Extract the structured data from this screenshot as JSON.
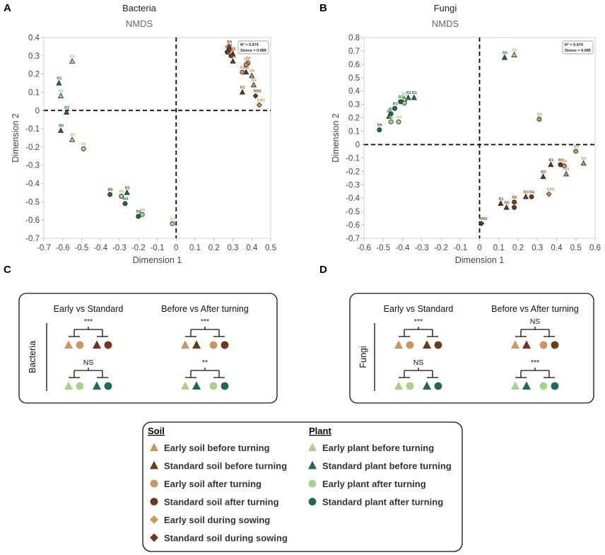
{
  "colors": {
    "early_soil": "#c8965f",
    "standard_soil": "#6b3a1e",
    "early_plant": "#a8d28a",
    "standard_plant": "#1f6b4e",
    "label_brown": "#8a4a20",
    "label_tan": "#c8965f",
    "label_green": "#9cc97d",
    "label_dkgreen": "#1f6b4e"
  },
  "chart_data": [
    {
      "panel": "A",
      "type": "scatter",
      "title": "Bacteria",
      "subtitle": "NMDS",
      "xlabel": "Dimension 1",
      "ylabel": "Dimension 2",
      "xlim": [
        -0.7,
        0.5
      ],
      "ylim": [
        -0.7,
        0.4
      ],
      "xticks": [
        "-0.7",
        "-0.6",
        "-0.5",
        "-0.4",
        "-0.3",
        "-0.2",
        "-0.1",
        "0",
        "0.1",
        "0.2",
        "0.3",
        "0.4",
        "0.5"
      ],
      "yticks": [
        "-0.7",
        "-0.6",
        "-0.5",
        "-0.4",
        "-0.3",
        "-0.2",
        "-0.1",
        "0",
        "0.1",
        "0.2",
        "0.3",
        "0.4"
      ],
      "stats": [
        "R² = 0.974",
        "Stress = 0.089"
      ],
      "points": [
        {
          "x": -0.55,
          "y": 0.27,
          "g": "epb",
          "label": "R1"
        },
        {
          "x": -0.62,
          "y": 0.15,
          "g": "spb",
          "label": "R1"
        },
        {
          "x": -0.61,
          "y": 0.08,
          "g": "epb",
          "label": "R2"
        },
        {
          "x": -0.58,
          "y": -0.01,
          "g": "spb",
          "label": "R2"
        },
        {
          "x": -0.61,
          "y": -0.11,
          "g": "spb",
          "label": "R0"
        },
        {
          "x": -0.55,
          "y": -0.16,
          "g": "epb",
          "label": "R0"
        },
        {
          "x": -0.49,
          "y": -0.21,
          "g": "epa",
          "label": "R1"
        },
        {
          "x": -0.35,
          "y": -0.46,
          "g": "spa",
          "label": "R5"
        },
        {
          "x": -0.29,
          "y": -0.47,
          "g": "epa",
          "label": "R5"
        },
        {
          "x": -0.26,
          "y": -0.45,
          "g": "spb",
          "label": "R3"
        },
        {
          "x": -0.27,
          "y": -0.51,
          "g": "spa",
          "label": "R4"
        },
        {
          "x": -0.2,
          "y": -0.58,
          "g": "spa",
          "label": "R6"
        },
        {
          "x": -0.18,
          "y": -0.57,
          "g": "epa",
          "label": "R6"
        },
        {
          "x": -0.02,
          "y": -0.62,
          "g": "epa",
          "label": "R3"
        },
        {
          "x": 0.28,
          "y": 0.35,
          "g": "ssb",
          "label": "R6"
        },
        {
          "x": 0.28,
          "y": 0.33,
          "g": "ssa",
          "label": "R4"
        },
        {
          "x": 0.27,
          "y": 0.32,
          "g": "ssa",
          "label": "R3"
        },
        {
          "x": 0.3,
          "y": 0.31,
          "g": "ssb",
          "label": "R5"
        },
        {
          "x": 0.29,
          "y": 0.3,
          "g": "ssa",
          "label": "R2"
        },
        {
          "x": 0.3,
          "y": 0.27,
          "g": "ssb",
          "label": "R4"
        },
        {
          "x": 0.38,
          "y": 0.26,
          "g": "esa",
          "label": "R6"
        },
        {
          "x": 0.37,
          "y": 0.25,
          "g": "esa",
          "label": "R4"
        },
        {
          "x": 0.35,
          "y": 0.21,
          "g": "esa",
          "label": "R3"
        },
        {
          "x": 0.37,
          "y": 0.21,
          "g": "ssb",
          "label": "R1"
        },
        {
          "x": 0.4,
          "y": 0.19,
          "g": "esb",
          "label": "R5"
        },
        {
          "x": 0.41,
          "y": 0.14,
          "g": "esb",
          "label": "R2"
        },
        {
          "x": 0.35,
          "y": 0.1,
          "g": "ssb",
          "label": "R1"
        },
        {
          "x": 0.42,
          "y": 0.08,
          "g": "ssd",
          "label": "RM1"
        },
        {
          "x": 0.44,
          "y": 0.03,
          "g": "esd",
          "label": "EM1"
        }
      ]
    },
    {
      "panel": "B",
      "type": "scatter",
      "title": "Fungi",
      "subtitle": "NMDS",
      "xlabel": "Dimension 1",
      "ylabel": "Dimension 2",
      "xlim": [
        -0.6,
        0.6
      ],
      "ylim": [
        -0.7,
        0.8
      ],
      "xticks": [
        "-0.6",
        "-0.5",
        "-0.4",
        "-0.3",
        "-0.2",
        "-0.1",
        "0",
        "0.1",
        "0.2",
        "0.3",
        "0.4",
        "0.5",
        "0.6"
      ],
      "yticks": [
        "-0.7",
        "-0.6",
        "-0.5",
        "-0.4",
        "-0.3",
        "-0.2",
        "-0.1",
        "0",
        "0.1",
        "0.2",
        "0.3",
        "0.4",
        "0.5",
        "0.6",
        "0.7",
        "0.8"
      ],
      "stats": [
        "R² = 0.974",
        "Stress = 0.085"
      ],
      "points": [
        {
          "x": 0.13,
          "y": 0.65,
          "g": "spb",
          "label": "R5"
        },
        {
          "x": 0.18,
          "y": 0.67,
          "g": "epb",
          "label": "R6"
        },
        {
          "x": -0.37,
          "y": 0.35,
          "g": "spb",
          "label": "R3"
        },
        {
          "x": -0.34,
          "y": 0.35,
          "g": "spb",
          "label": "R1"
        },
        {
          "x": -0.39,
          "y": 0.34,
          "g": "epb",
          "label": "R2"
        },
        {
          "x": -0.41,
          "y": 0.32,
          "g": "spa",
          "label": "R2"
        },
        {
          "x": -0.44,
          "y": 0.27,
          "g": "spa",
          "label": "R3"
        },
        {
          "x": -0.39,
          "y": 0.31,
          "g": "epa",
          "label": "R5"
        },
        {
          "x": -0.46,
          "y": 0.23,
          "g": "spa",
          "label": "R4"
        },
        {
          "x": -0.47,
          "y": 0.21,
          "g": "spb",
          "label": "R5"
        },
        {
          "x": -0.42,
          "y": 0.17,
          "g": "epa",
          "label": "R4"
        },
        {
          "x": -0.46,
          "y": 0.17,
          "g": "epa",
          "label": "R6"
        },
        {
          "x": -0.52,
          "y": 0.11,
          "g": "spa",
          "label": "R6"
        },
        {
          "x": 0.31,
          "y": 0.19,
          "g": "esa",
          "label": "R3"
        },
        {
          "x": 0.5,
          "y": -0.05,
          "g": "esa",
          "label": "R4"
        },
        {
          "x": 0.54,
          "y": -0.14,
          "g": "esb",
          "label": "R2"
        },
        {
          "x": 0.37,
          "y": -0.15,
          "g": "ssb",
          "label": "R1"
        },
        {
          "x": 0.42,
          "y": -0.15,
          "g": "ssa",
          "label": "R4"
        },
        {
          "x": 0.44,
          "y": -0.16,
          "g": "esa",
          "label": "R5"
        },
        {
          "x": 0.45,
          "y": -0.22,
          "g": "esb",
          "label": "R3"
        },
        {
          "x": 0.33,
          "y": -0.24,
          "g": "ssb",
          "label": "R2"
        },
        {
          "x": 0.36,
          "y": -0.37,
          "g": "esd",
          "label": "RM1"
        },
        {
          "x": 0.24,
          "y": -0.39,
          "g": "ssb",
          "label": "R3"
        },
        {
          "x": 0.27,
          "y": -0.39,
          "g": "ssa",
          "label": "R4"
        },
        {
          "x": 0.18,
          "y": -0.43,
          "g": "ssa",
          "label": "R5"
        },
        {
          "x": 0.11,
          "y": -0.44,
          "g": "ssb",
          "label": "R1"
        },
        {
          "x": 0.14,
          "y": -0.47,
          "g": "ssb",
          "label": "R0"
        },
        {
          "x": 0.18,
          "y": -0.47,
          "g": "ssa",
          "label": "R6"
        },
        {
          "x": 0.01,
          "y": -0.59,
          "g": "ssd",
          "label": "RM1"
        }
      ]
    }
  ],
  "panel_c": {
    "label": "C",
    "row_label": "Bacteria",
    "left_title": "Early vs Standard",
    "right_title": "Before vs After turning",
    "sig": {
      "soil_left": "***",
      "soil_right": "***",
      "plant_left": "NS",
      "plant_right": "**"
    }
  },
  "panel_d": {
    "label": "D",
    "row_label": "Fungi",
    "left_title": "Early vs Standard",
    "right_title": "Before vs After turning",
    "sig": {
      "soil_left": "***",
      "soil_right": "NS",
      "plant_left": "NS",
      "plant_right": "***"
    }
  },
  "legend": {
    "soil_heading": "Soil",
    "plant_heading": "Plant",
    "soil_items": [
      {
        "g": "esb",
        "label": "Early soil before turning"
      },
      {
        "g": "ssb",
        "label": "Standard soil before turning"
      },
      {
        "g": "esa",
        "label": "Early soil after turning"
      },
      {
        "g": "ssa",
        "label": "Standard soil after turning"
      },
      {
        "g": "esd",
        "label": "Early soil during sowing"
      },
      {
        "g": "ssd",
        "label": "Standard soil during sowing"
      }
    ],
    "plant_items": [
      {
        "g": "epb",
        "label": "Early plant before turning"
      },
      {
        "g": "spb",
        "label": "Standard plant before turning"
      },
      {
        "g": "epa",
        "label": "Early plant after turning"
      },
      {
        "g": "spa",
        "label": "Standard plant after turning"
      }
    ]
  }
}
